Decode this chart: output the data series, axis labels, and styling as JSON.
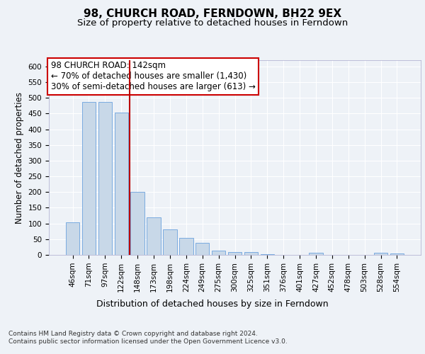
{
  "title1": "98, CHURCH ROAD, FERNDOWN, BH22 9EX",
  "title2": "Size of property relative to detached houses in Ferndown",
  "xlabel": "Distribution of detached houses by size in Ferndown",
  "ylabel": "Number of detached properties",
  "categories": [
    "46sqm",
    "71sqm",
    "97sqm",
    "122sqm",
    "148sqm",
    "173sqm",
    "198sqm",
    "224sqm",
    "249sqm",
    "275sqm",
    "300sqm",
    "325sqm",
    "351sqm",
    "376sqm",
    "401sqm",
    "427sqm",
    "452sqm",
    "478sqm",
    "503sqm",
    "528sqm",
    "554sqm"
  ],
  "values": [
    104,
    487,
    487,
    453,
    200,
    119,
    81,
    55,
    39,
    14,
    9,
    10,
    3,
    1,
    1,
    6,
    0,
    0,
    0,
    6,
    5
  ],
  "bar_color": "#c8d8e8",
  "bar_edge_color": "#7aabe0",
  "vline_color": "#bb0000",
  "annotation_text": "98 CHURCH ROAD: 142sqm\n← 70% of detached houses are smaller (1,430)\n30% of semi-detached houses are larger (613) →",
  "annotation_box_color": "#ffffff",
  "annotation_box_edge": "#cc0000",
  "ylim": [
    0,
    620
  ],
  "yticks": [
    0,
    50,
    100,
    150,
    200,
    250,
    300,
    350,
    400,
    450,
    500,
    550,
    600
  ],
  "footer_text": "Contains HM Land Registry data © Crown copyright and database right 2024.\nContains public sector information licensed under the Open Government Licence v3.0.",
  "title1_fontsize": 11,
  "title2_fontsize": 9.5,
  "xlabel_fontsize": 9,
  "ylabel_fontsize": 8.5,
  "tick_fontsize": 7.5,
  "annotation_fontsize": 8.5,
  "footer_fontsize": 6.5,
  "background_color": "#eef2f7",
  "grid_color": "#ffffff",
  "axes_bg_color": "#eef2f7"
}
